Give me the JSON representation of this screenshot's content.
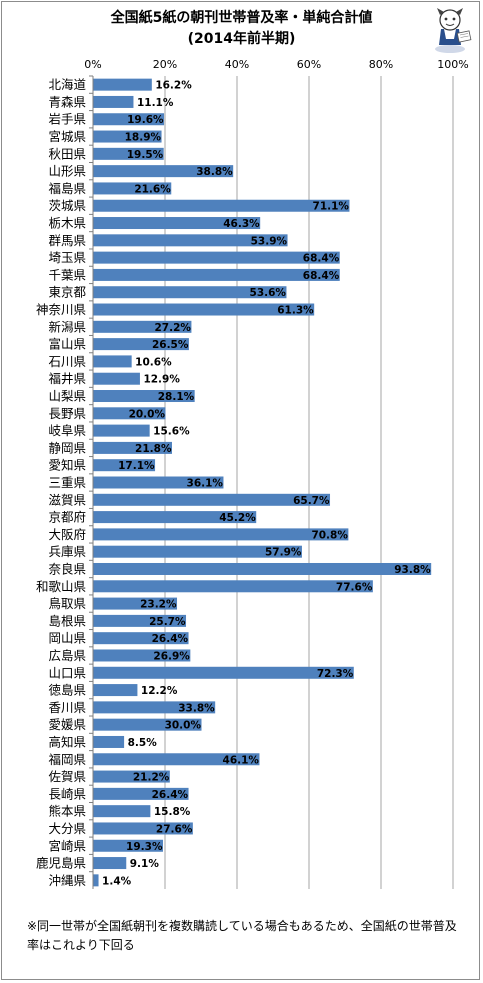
{
  "chart_data": {
    "type": "bar",
    "orientation": "horizontal",
    "title": "全国紙5紙の朝刊世帯普及率・単純合計値",
    "subtitle": "(2014年前半期)",
    "xlim": [
      0,
      100
    ],
    "ticks": [
      "0%",
      "20%",
      "40%",
      "60%",
      "80%",
      "100%"
    ],
    "tick_values": [
      0,
      20,
      40,
      60,
      80,
      100
    ],
    "grid": true,
    "bar_color": "#4f81bd",
    "categories": [
      "北海道",
      "青森県",
      "岩手県",
      "宮城県",
      "秋田県",
      "山形県",
      "福島県",
      "茨城県",
      "栃木県",
      "群馬県",
      "埼玉県",
      "千葉県",
      "東京都",
      "神奈川県",
      "新潟県",
      "富山県",
      "石川県",
      "福井県",
      "山梨県",
      "長野県",
      "岐阜県",
      "静岡県",
      "愛知県",
      "三重県",
      "滋賀県",
      "京都府",
      "大阪府",
      "兵庫県",
      "奈良県",
      "和歌山県",
      "鳥取県",
      "島根県",
      "岡山県",
      "広島県",
      "山口県",
      "徳島県",
      "香川県",
      "愛媛県",
      "高知県",
      "福岡県",
      "佐賀県",
      "長崎県",
      "熊本県",
      "大分県",
      "宮崎県",
      "鹿児島県",
      "沖縄県"
    ],
    "values": [
      16.2,
      11.1,
      19.6,
      18.9,
      19.5,
      38.8,
      21.6,
      71.1,
      46.3,
      53.9,
      68.4,
      68.4,
      53.6,
      61.3,
      27.2,
      26.5,
      10.6,
      12.9,
      28.1,
      20.0,
      15.6,
      21.8,
      17.1,
      36.1,
      65.7,
      45.2,
      70.8,
      57.9,
      93.8,
      77.6,
      23.2,
      25.7,
      26.4,
      26.9,
      72.3,
      12.2,
      33.8,
      30.0,
      8.5,
      46.1,
      21.2,
      26.4,
      15.8,
      27.6,
      19.3,
      9.1,
      1.4
    ],
    "labels": [
      "16.2%",
      "11.1%",
      "19.6%",
      "18.9%",
      "19.5%",
      "38.8%",
      "21.6%",
      "71.1%",
      "46.3%",
      "53.9%",
      "68.4%",
      "68.4%",
      "53.6%",
      "61.3%",
      "27.2%",
      "26.5%",
      "10.6%",
      "12.9%",
      "28.1%",
      "20.0%",
      "15.6%",
      "21.8%",
      "17.1%",
      "36.1%",
      "65.7%",
      "45.2%",
      "70.8%",
      "57.9%",
      "93.8%",
      "77.6%",
      "23.2%",
      "25.7%",
      "26.4%",
      "26.9%",
      "72.3%",
      "12.2%",
      "33.8%",
      "30.0%",
      "8.5%",
      "46.1%",
      "21.2%",
      "26.4%",
      "15.8%",
      "27.6%",
      "19.3%",
      "9.1%",
      "1.4%"
    ]
  },
  "note": "※同一世帯が全国紙朝刊を複数購読している場合もあるため、全国紙の世帯普及率はこれより下回る"
}
